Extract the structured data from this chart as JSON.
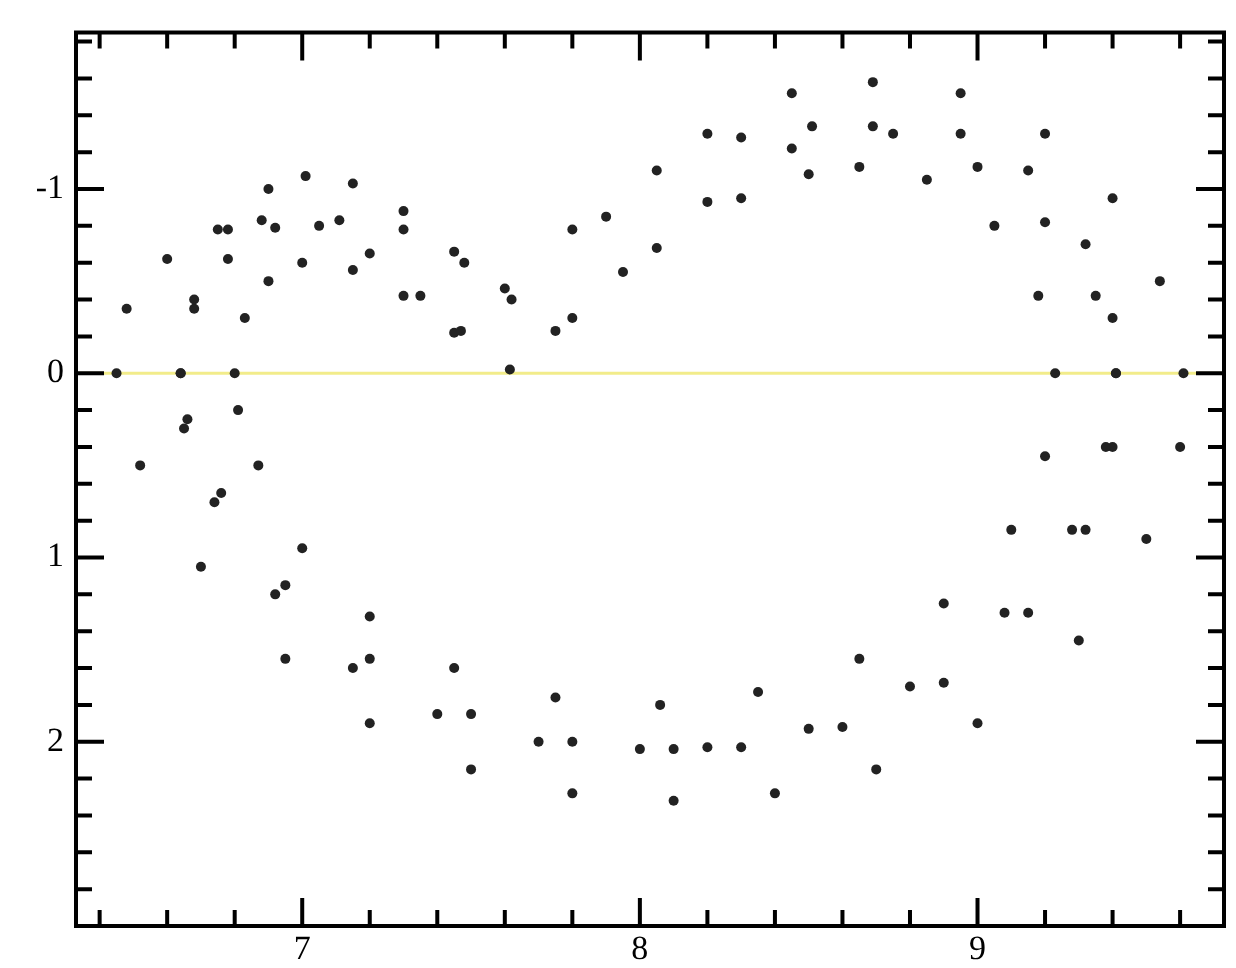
{
  "chart_data": {
    "type": "scatter",
    "xlim": [
      6.33,
      9.73
    ],
    "ylim": [
      3.0,
      -1.85
    ],
    "xticks": [
      {
        "value": 6.4,
        "label": null
      },
      {
        "value": 6.6,
        "label": null
      },
      {
        "value": 6.8,
        "label": null
      },
      7,
      {
        "value": 7.2,
        "label": null
      },
      {
        "value": 7.4,
        "label": null
      },
      {
        "value": 7.6,
        "label": null
      },
      {
        "value": 7.8,
        "label": null
      },
      8,
      {
        "value": 8.2,
        "label": null
      },
      {
        "value": 8.4,
        "label": null
      },
      {
        "value": 8.6,
        "label": null
      },
      {
        "value": 8.8,
        "label": null
      },
      9,
      {
        "value": 9.2,
        "label": null
      },
      {
        "value": 9.4,
        "label": null
      },
      {
        "value": 9.6,
        "label": null
      }
    ],
    "yticks": [
      {
        "value": -1.8,
        "label": null
      },
      {
        "value": -1.6,
        "label": null
      },
      {
        "value": -1.4,
        "label": null
      },
      {
        "value": -1.2,
        "label": null
      },
      -1,
      {
        "value": -0.8,
        "label": null
      },
      {
        "value": -0.6,
        "label": null
      },
      {
        "value": -0.4,
        "label": null
      },
      {
        "value": -0.2,
        "label": null
      },
      0,
      {
        "value": 0.2,
        "label": null
      },
      {
        "value": 0.4,
        "label": null
      },
      {
        "value": 0.6,
        "label": null
      },
      {
        "value": 0.8,
        "label": null
      },
      1,
      {
        "value": 1.2,
        "label": null
      },
      {
        "value": 1.4,
        "label": null
      },
      {
        "value": 1.6,
        "label": null
      },
      {
        "value": 1.8,
        "label": null
      },
      2,
      {
        "value": 2.2,
        "label": null
      },
      {
        "value": 2.4,
        "label": null
      },
      {
        "value": 2.6,
        "label": null
      },
      {
        "value": 2.8,
        "label": null
      }
    ],
    "grid": false,
    "legend": false,
    "marker": "circle",
    "ref_lines": [
      {
        "axis": "y",
        "value": 0,
        "color": "#f2ec8a"
      }
    ],
    "series": [
      {
        "color": "#222222",
        "x": [
          7.47,
          7.9,
          8.2,
          8.45,
          8.69,
          8.95,
          9.2,
          9.4,
          9.54,
          9.61,
          9.6,
          9.5,
          9.3,
          9.0,
          8.7,
          8.4,
          8.1,
          7.8,
          7.5,
          7.2,
          6.95,
          6.7,
          6.52,
          6.45,
          6.48,
          6.6,
          6.75,
          6.88,
          7.05,
          7.2,
          7.35
        ],
        "values": [
          -0.23,
          -0.85,
          -1.3,
          -1.52,
          -1.58,
          -1.52,
          -1.3,
          -0.95,
          -0.5,
          0,
          0.4,
          0.9,
          1.45,
          1.9,
          2.15,
          2.28,
          2.32,
          2.28,
          2.15,
          1.9,
          1.55,
          1.05,
          0.5,
          0,
          -0.35,
          -0.62,
          -0.78,
          -0.83,
          -0.8,
          -0.65,
          -0.42
        ]
      },
      {
        "color": "#222222",
        "x": [
          7.6,
          7.8,
          8.05,
          8.3,
          8.51,
          8.75,
          9.0,
          9.2,
          9.35,
          9.41,
          9.38,
          9.28,
          9.08,
          8.8,
          8.5,
          8.2,
          8.0,
          7.7,
          7.4,
          7.15,
          6.92,
          6.74,
          6.65,
          6.64,
          6.68,
          6.78,
          6.9,
          7.01,
          7.15,
          7.3,
          7.45
        ],
        "values": [
          -0.46,
          -0.78,
          -1.1,
          -1.28,
          -1.34,
          -1.3,
          -1.12,
          -0.82,
          -0.42,
          0,
          0.4,
          0.85,
          1.3,
          1.7,
          1.93,
          2.03,
          2.04,
          2.0,
          1.85,
          1.6,
          1.2,
          0.7,
          0.3,
          0,
          -0.4,
          -0.78,
          -1.0,
          -1.07,
          -1.03,
          -0.88,
          -0.66
        ]
      },
      {
        "color": "#222222",
        "x": [
          7.75,
          7.95,
          8.2,
          8.45,
          8.69,
          8.95,
          9.15,
          9.32,
          9.4,
          9.41,
          9.4,
          9.32,
          9.15,
          8.9,
          8.6,
          8.3,
          8.1,
          7.8,
          7.5,
          7.2,
          6.95,
          6.76,
          6.66,
          6.64,
          6.68,
          6.78,
          6.92,
          7.11,
          7.3,
          7.48,
          7.62
        ],
        "values": [
          -0.23,
          -0.55,
          -0.93,
          -1.22,
          -1.34,
          -1.3,
          -1.1,
          -0.7,
          -0.3,
          0,
          0.4,
          0.85,
          1.3,
          1.68,
          1.92,
          2.03,
          2.04,
          2.0,
          1.85,
          1.55,
          1.15,
          0.65,
          0.25,
          0,
          -0.35,
          -0.62,
          -0.79,
          -0.83,
          -0.78,
          -0.6,
          -0.4
        ]
      },
      {
        "color": "#222222",
        "x": [
          7.615,
          7.8,
          8.05,
          8.3,
          8.5,
          8.65,
          8.85,
          9.05,
          9.18,
          9.23,
          9.2,
          9.1,
          8.9,
          8.65,
          8.35,
          8.06,
          7.75,
          7.45,
          7.2,
          7.0,
          6.87,
          6.81,
          6.8,
          6.83,
          6.9,
          7.0,
          7.15,
          7.3,
          7.45
        ],
        "values": [
          -0.02,
          -0.3,
          -0.68,
          -0.95,
          -1.08,
          -1.12,
          -1.05,
          -0.8,
          -0.42,
          0,
          0.45,
          0.85,
          1.25,
          1.55,
          1.73,
          1.8,
          1.76,
          1.6,
          1.32,
          0.95,
          0.5,
          0.2,
          0,
          -0.3,
          -0.5,
          -0.6,
          -0.56,
          -0.42,
          -0.22
        ]
      }
    ]
  }
}
